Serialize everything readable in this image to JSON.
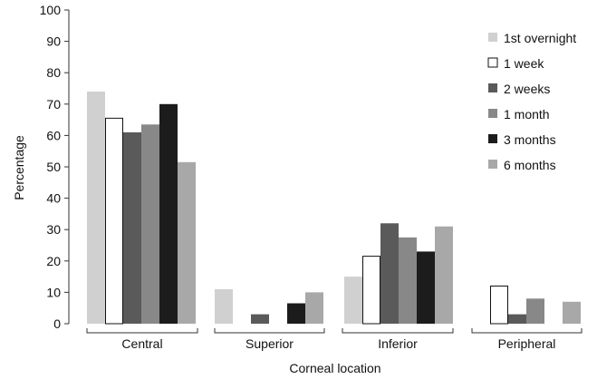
{
  "chart_data": {
    "type": "bar",
    "title": "",
    "xlabel": "Corneal location",
    "ylabel": "Percentage",
    "ylim": [
      0,
      100
    ],
    "yticks": [
      0,
      10,
      20,
      30,
      40,
      50,
      60,
      70,
      80,
      90,
      100
    ],
    "grid": false,
    "legend_position": "top-right",
    "categories": [
      "Central",
      "Superior",
      "Inferior",
      "Peripheral"
    ],
    "series": [
      {
        "name": "1st overnight",
        "color": "#d0d0d0",
        "outline": false,
        "values": [
          74,
          11,
          15,
          0
        ]
      },
      {
        "name": "1 week",
        "color": "#ffffff",
        "outline": true,
        "values": [
          65.5,
          0,
          21.5,
          12
        ]
      },
      {
        "name": "2 weeks",
        "color": "#5a5a5a",
        "outline": false,
        "values": [
          61,
          3,
          32,
          3
        ]
      },
      {
        "name": "1 month",
        "color": "#888888",
        "outline": false,
        "values": [
          63.5,
          0,
          27.5,
          8
        ]
      },
      {
        "name": "3 months",
        "color": "#1c1c1c",
        "outline": false,
        "values": [
          70,
          6.5,
          23,
          0
        ]
      },
      {
        "name": "6 months",
        "color": "#a8a8a8",
        "outline": false,
        "values": [
          51.5,
          10,
          31,
          7
        ]
      }
    ]
  }
}
